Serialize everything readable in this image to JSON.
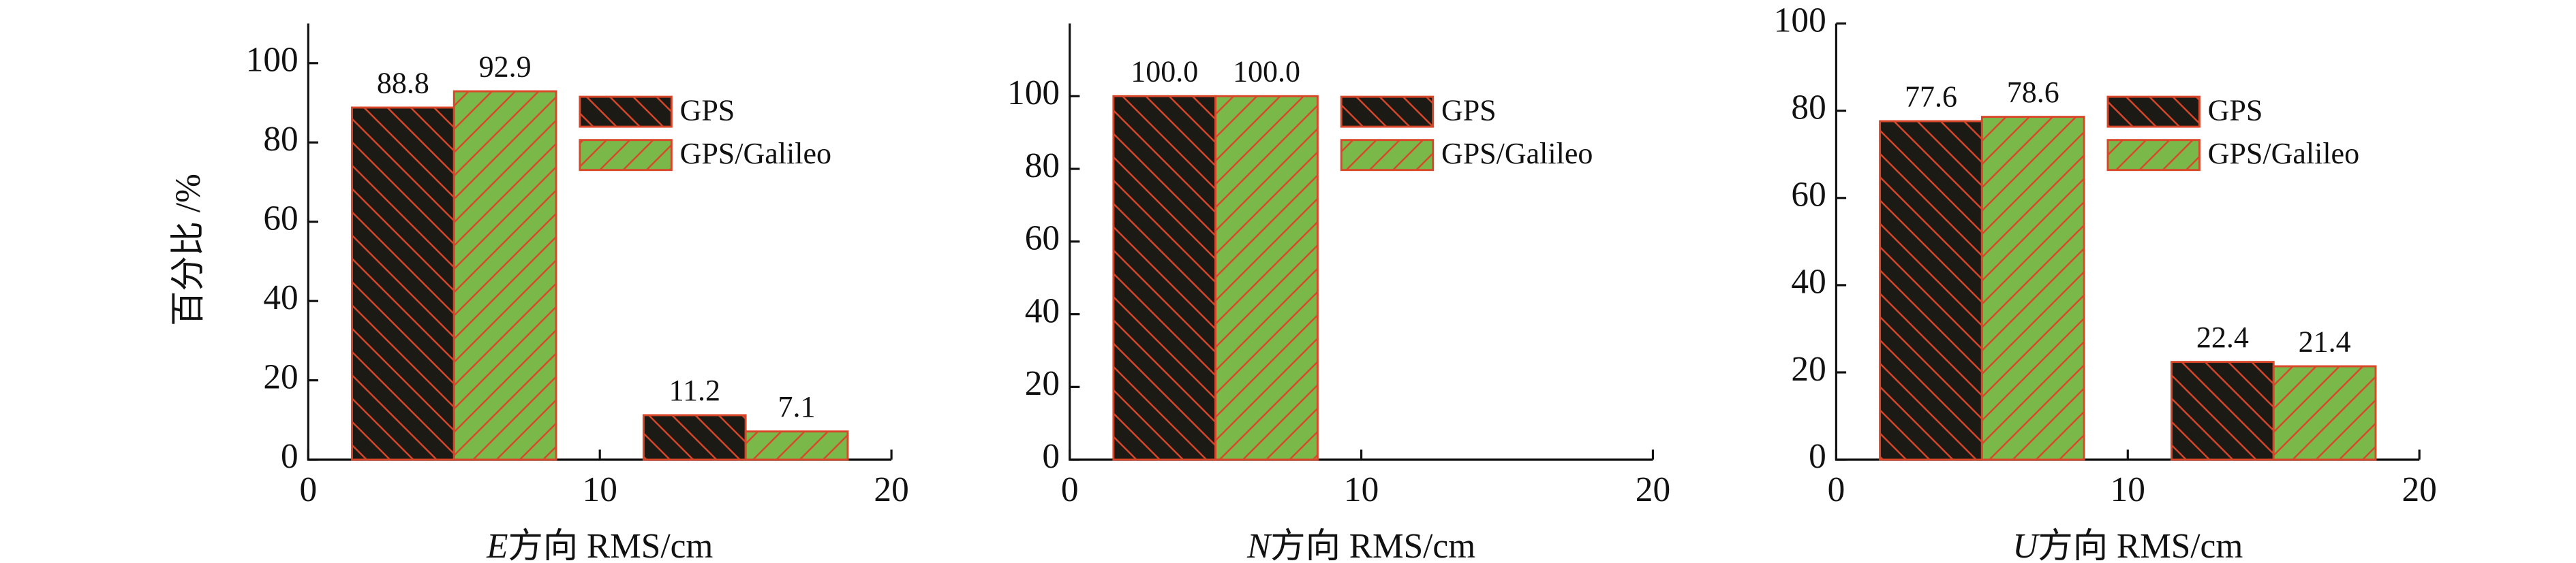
{
  "chart_data": [
    {
      "type": "bar",
      "xlabel": [
        "E",
        "方向 RMS/cm"
      ],
      "ylabel": "百分比 /%",
      "x": [
        5,
        15
      ],
      "xlim": [
        0,
        20
      ],
      "xticks": [
        0,
        10,
        20
      ],
      "ylim": [
        0,
        110
      ],
      "yticks": [
        0,
        20,
        40,
        60,
        80,
        100
      ],
      "legend": "upper right",
      "series": [
        {
          "name": "GPS",
          "color": "#1b1a15",
          "hatch": "#d9472b",
          "values": [
            88.8,
            11.2
          ]
        },
        {
          "name": "GPS/Galileo",
          "color": "#7ab84a",
          "hatch": "#d9472b",
          "values": [
            92.9,
            7.1
          ]
        }
      ]
    },
    {
      "type": "bar",
      "xlabel": [
        "N",
        "方向 RMS/cm"
      ],
      "x": [
        5,
        15
      ],
      "xlim": [
        0,
        20
      ],
      "xticks": [
        0,
        10,
        20
      ],
      "ylim": [
        0,
        120
      ],
      "yticks": [
        0,
        20,
        40,
        60,
        80,
        100
      ],
      "legend": "upper right",
      "series": [
        {
          "name": "GPS",
          "color": "#1b1a15",
          "hatch": "#d9472b",
          "values": [
            100,
            null
          ],
          "value_labels": [
            "100.0",
            null
          ]
        },
        {
          "name": "GPS/Galileo",
          "color": "#7ab84a",
          "hatch": "#d9472b",
          "values": [
            100,
            null
          ],
          "value_labels": [
            "100.0",
            null
          ]
        }
      ]
    },
    {
      "type": "bar",
      "xlabel": [
        "U",
        "方向 RMS/cm"
      ],
      "x": [
        5,
        15
      ],
      "xlim": [
        0,
        20
      ],
      "xticks": [
        0,
        10,
        20
      ],
      "ylim": [
        0,
        100
      ],
      "yticks": [
        0,
        20,
        40,
        60,
        80,
        100
      ],
      "legend": "upper right",
      "series": [
        {
          "name": "GPS",
          "color": "#1b1a15",
          "hatch": "#d9472b",
          "values": [
            77.6,
            22.4
          ]
        },
        {
          "name": "GPS/Galileo",
          "color": "#7ab84a",
          "hatch": "#d9472b",
          "values": [
            78.6,
            21.4
          ]
        }
      ]
    }
  ]
}
